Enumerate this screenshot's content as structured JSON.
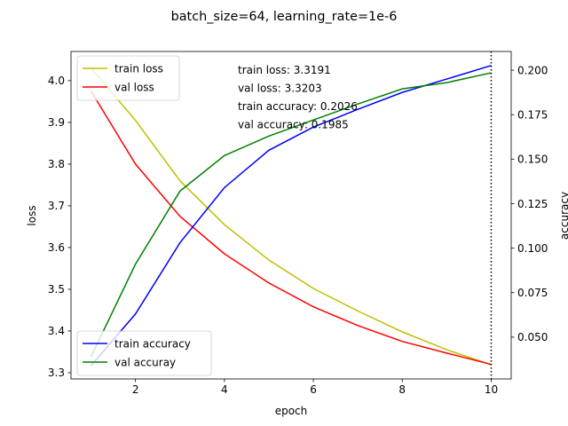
{
  "chart_data": {
    "type": "line",
    "title": "batch_size=64, learning_rate=1e-6",
    "xlabel": "epoch",
    "ylabel_left": "loss",
    "ylabel_right": "accuracy",
    "x": [
      1,
      2,
      3,
      4,
      5,
      6,
      7,
      8,
      9,
      10
    ],
    "xlim": [
      0.55,
      10.45
    ],
    "xticks": [
      2,
      4,
      6,
      8,
      10
    ],
    "ylim_left": [
      3.285,
      4.07
    ],
    "yticks_left": [
      3.3,
      3.4,
      3.5,
      3.6,
      3.7,
      3.8,
      3.9,
      4.0
    ],
    "ylim_right": [
      0.0265,
      0.2105
    ],
    "yticks_right": [
      0.05,
      0.075,
      0.1,
      0.125,
      0.15,
      0.175,
      0.2
    ],
    "vline_x": 10,
    "series_left": [
      {
        "name": "train loss",
        "color": "#bfbf00",
        "values": [
          4.03,
          3.905,
          3.76,
          3.655,
          3.57,
          3.502,
          3.448,
          3.398,
          3.355,
          3.319
        ]
      },
      {
        "name": "val loss",
        "color": "#ff0000",
        "values": [
          3.975,
          3.8,
          3.675,
          3.585,
          3.515,
          3.458,
          3.413,
          3.375,
          3.347,
          3.32
        ]
      }
    ],
    "series_right": [
      {
        "name": "train accuracy",
        "color": "#0000ff",
        "values": [
          0.034,
          0.063,
          0.103,
          0.134,
          0.155,
          0.168,
          0.178,
          0.1875,
          0.195,
          0.2026
        ]
      },
      {
        "name": "val accuray",
        "color": "#008000",
        "values": [
          0.039,
          0.091,
          0.132,
          0.152,
          0.163,
          0.172,
          0.181,
          0.1895,
          0.193,
          0.1985
        ]
      }
    ],
    "annotation": [
      "train loss: 3.3191",
      "val loss: 3.3203",
      "train accuracy: 0.2026",
      "val accuracy: 0.1985"
    ],
    "legend_left_placement": "upper-left",
    "legend_right_placement": "lower-left",
    "grid": false
  }
}
